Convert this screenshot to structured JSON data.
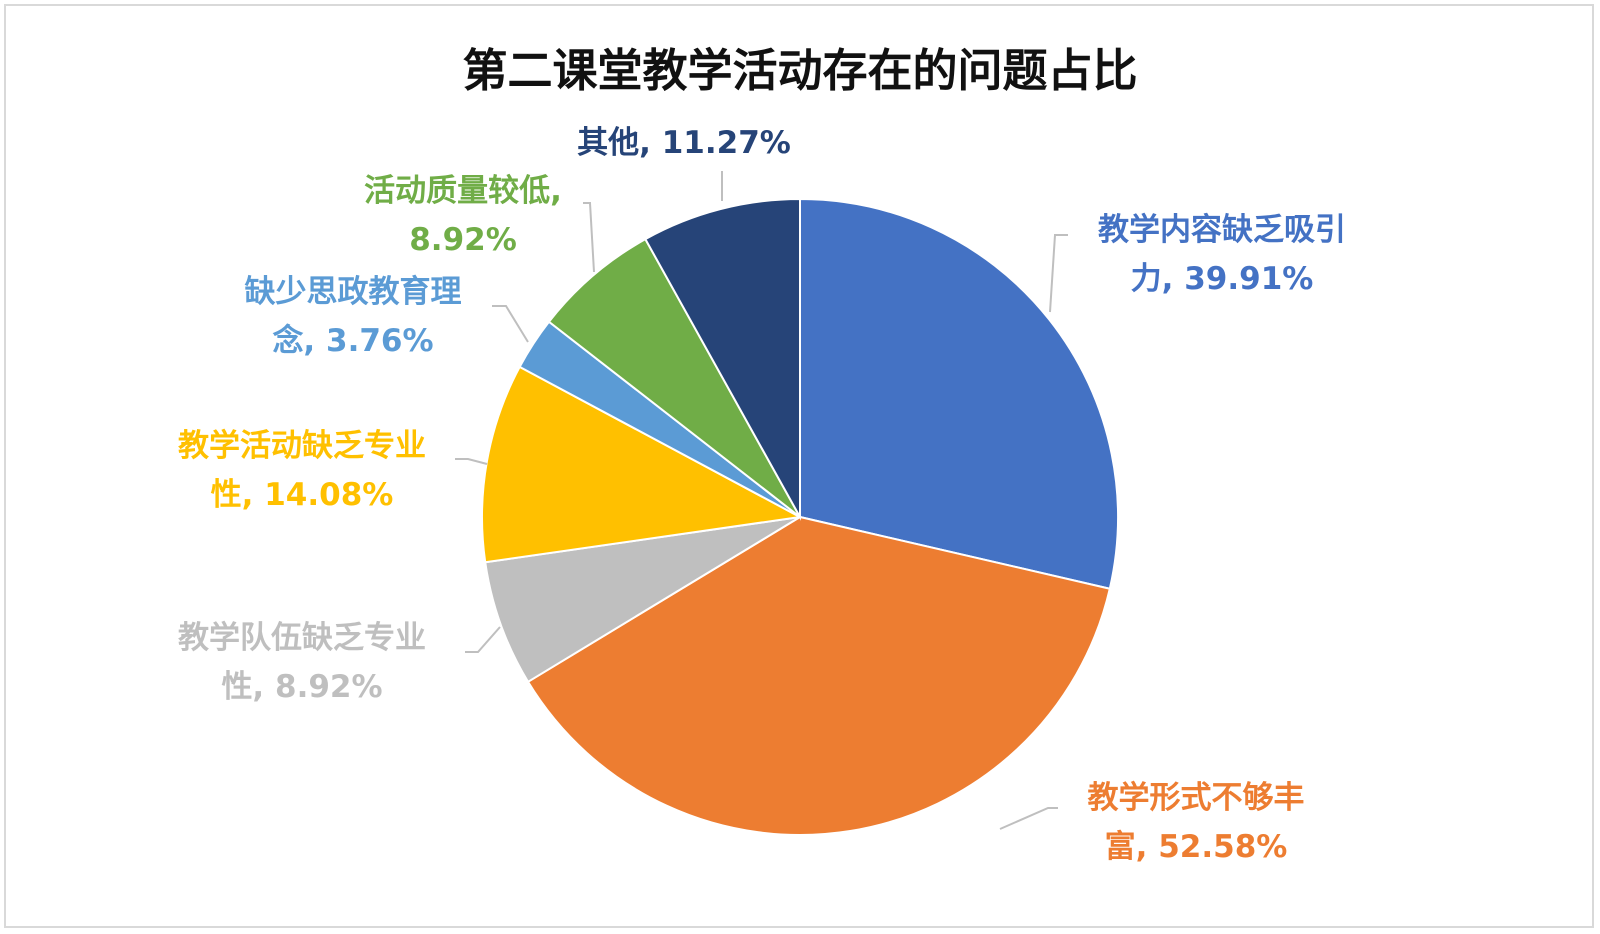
{
  "chart_data": {
    "type": "pie",
    "title": "第二课堂教学活动存在的问题占比",
    "slices": [
      {
        "name": "教学内容缺乏吸引力",
        "value": 39.91,
        "display": "39.91%",
        "color": "#4472C4",
        "label_lines": [
          "教学内容缺乏吸引",
          "力, 39.91%"
        ]
      },
      {
        "name": "教学形式不够丰富",
        "value": 52.58,
        "display": "52.58%",
        "color": "#ED7D31",
        "label_lines": [
          "教学形式不够丰",
          "富, 52.58%"
        ]
      },
      {
        "name": "教学队伍缺乏专业性",
        "value": 8.92,
        "display": "8.92%",
        "color": "#BFBFBF",
        "label_lines": [
          "教学队伍缺乏专业",
          "性, 8.92%"
        ]
      },
      {
        "name": "教学活动缺乏专业性",
        "value": 14.08,
        "display": "14.08%",
        "color": "#FFC000",
        "label_lines": [
          "教学活动缺乏专业",
          "性, 14.08%"
        ]
      },
      {
        "name": "缺少思政教育理念",
        "value": 3.76,
        "display": "3.76%",
        "color": "#5B9BD5",
        "label_lines": [
          "缺少思政教育理",
          "念, 3.76%"
        ]
      },
      {
        "name": "活动质量较低",
        "value": 8.92,
        "display": "8.92%",
        "color": "#70AD47",
        "label_lines": [
          "活动质量较低,",
          "8.92%"
        ]
      },
      {
        "name": "其他",
        "value": 11.27,
        "display": "11.27%",
        "color": "#264478",
        "label_lines": [
          "其他, 11.27%"
        ]
      }
    ],
    "start_angle_deg": 0,
    "direction": "clockwise",
    "legend": "none",
    "data_labels": "outside-with-leader-lines"
  }
}
